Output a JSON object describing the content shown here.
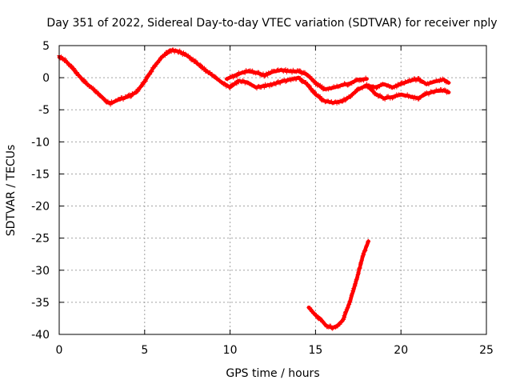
{
  "chart_data": {
    "type": "scatter",
    "title": "Day 351 of 2022, Sidereal Day-to-day VTEC variation (SDTVAR) for receiver nply",
    "xlabel": "GPS time / hours",
    "ylabel": "SDTVAR / TECUs",
    "xlim": [
      0,
      25
    ],
    "ylim": [
      -40,
      5
    ],
    "xticks": [
      0,
      5,
      10,
      15,
      20,
      25
    ],
    "yticks": [
      5,
      0,
      -5,
      -10,
      -15,
      -20,
      -25,
      -30,
      -35,
      -40
    ],
    "xtick_labels": [
      "0",
      "5",
      "10",
      "15",
      "20",
      "25"
    ],
    "ytick_labels": [
      "5",
      "0",
      "-5",
      "-10",
      "-15",
      "-20",
      "-25",
      "-30",
      "-35",
      "-40"
    ],
    "grid": true,
    "marker_color": "#ff0000",
    "series": [
      {
        "name": "trace-main",
        "points": [
          [
            0.0,
            3.2
          ],
          [
            0.3,
            2.8
          ],
          [
            0.6,
            2.0
          ],
          [
            1.0,
            0.8
          ],
          [
            1.5,
            -0.7
          ],
          [
            2.0,
            -1.8
          ],
          [
            2.5,
            -3.0
          ],
          [
            2.8,
            -3.8
          ],
          [
            3.0,
            -4.0
          ],
          [
            3.5,
            -3.4
          ],
          [
            4.0,
            -3.0
          ],
          [
            4.5,
            -2.3
          ],
          [
            5.0,
            -0.6
          ],
          [
            5.5,
            1.5
          ],
          [
            6.0,
            3.2
          ],
          [
            6.5,
            4.3
          ],
          [
            7.0,
            4.1
          ],
          [
            7.5,
            3.4
          ],
          [
            8.0,
            2.4
          ],
          [
            8.5,
            1.3
          ],
          [
            9.0,
            0.3
          ],
          [
            9.5,
            -0.7
          ],
          [
            10.0,
            -1.5
          ]
        ]
      },
      {
        "name": "trace-upper-1",
        "points": [
          [
            9.8,
            -0.2
          ],
          [
            10.5,
            0.6
          ],
          [
            11.0,
            1.0
          ],
          [
            11.5,
            0.8
          ],
          [
            12.0,
            0.4
          ],
          [
            12.5,
            0.9
          ],
          [
            13.0,
            1.2
          ],
          [
            13.5,
            1.0
          ],
          [
            14.0,
            1.0
          ]
        ]
      },
      {
        "name": "trace-lower-1",
        "points": [
          [
            10.0,
            -1.5
          ],
          [
            10.5,
            -0.5
          ],
          [
            11.0,
            -0.7
          ],
          [
            11.5,
            -1.5
          ],
          [
            12.0,
            -1.3
          ],
          [
            12.5,
            -1.0
          ],
          [
            13.0,
            -0.6
          ],
          [
            13.5,
            -0.3
          ],
          [
            14.0,
            0.0
          ]
        ]
      },
      {
        "name": "trace-middle-2",
        "points": [
          [
            14.0,
            1.0
          ],
          [
            14.5,
            0.5
          ],
          [
            15.0,
            -0.8
          ],
          [
            15.5,
            -1.8
          ],
          [
            16.0,
            -1.6
          ],
          [
            16.5,
            -1.2
          ],
          [
            17.0,
            -0.9
          ],
          [
            17.5,
            -0.3
          ],
          [
            18.0,
            -0.2
          ]
        ]
      },
      {
        "name": "trace-lower-2",
        "points": [
          [
            14.0,
            0.0
          ],
          [
            14.5,
            -1.0
          ],
          [
            15.0,
            -2.6
          ],
          [
            15.5,
            -3.6
          ],
          [
            16.0,
            -3.9
          ],
          [
            16.5,
            -3.7
          ],
          [
            17.0,
            -3.0
          ],
          [
            17.5,
            -1.8
          ],
          [
            18.0,
            -1.2
          ]
        ]
      },
      {
        "name": "trace-upper-3",
        "points": [
          [
            18.0,
            -1.2
          ],
          [
            18.5,
            -1.5
          ],
          [
            19.0,
            -1.0
          ],
          [
            19.5,
            -1.5
          ],
          [
            20.0,
            -1.0
          ],
          [
            20.5,
            -0.5
          ],
          [
            21.0,
            -0.2
          ],
          [
            21.5,
            -1.0
          ],
          [
            22.0,
            -0.6
          ],
          [
            22.5,
            -0.3
          ],
          [
            22.8,
            -0.8
          ]
        ]
      },
      {
        "name": "trace-lower-3",
        "points": [
          [
            18.0,
            -1.2
          ],
          [
            18.5,
            -2.5
          ],
          [
            19.0,
            -3.2
          ],
          [
            19.5,
            -3.0
          ],
          [
            20.0,
            -2.6
          ],
          [
            20.5,
            -2.9
          ],
          [
            21.0,
            -3.2
          ],
          [
            21.5,
            -2.5
          ],
          [
            22.0,
            -2.1
          ],
          [
            22.5,
            -2.0
          ],
          [
            22.8,
            -2.3
          ]
        ]
      },
      {
        "name": "trace-dip",
        "points": [
          [
            14.6,
            -35.8
          ],
          [
            15.0,
            -37.0
          ],
          [
            15.3,
            -37.6
          ],
          [
            15.6,
            -38.6
          ],
          [
            16.0,
            -39.0
          ],
          [
            16.3,
            -38.6
          ],
          [
            16.6,
            -37.8
          ],
          [
            17.0,
            -35.0
          ],
          [
            17.4,
            -31.5
          ],
          [
            17.8,
            -27.5
          ],
          [
            18.1,
            -25.5
          ]
        ]
      }
    ]
  }
}
